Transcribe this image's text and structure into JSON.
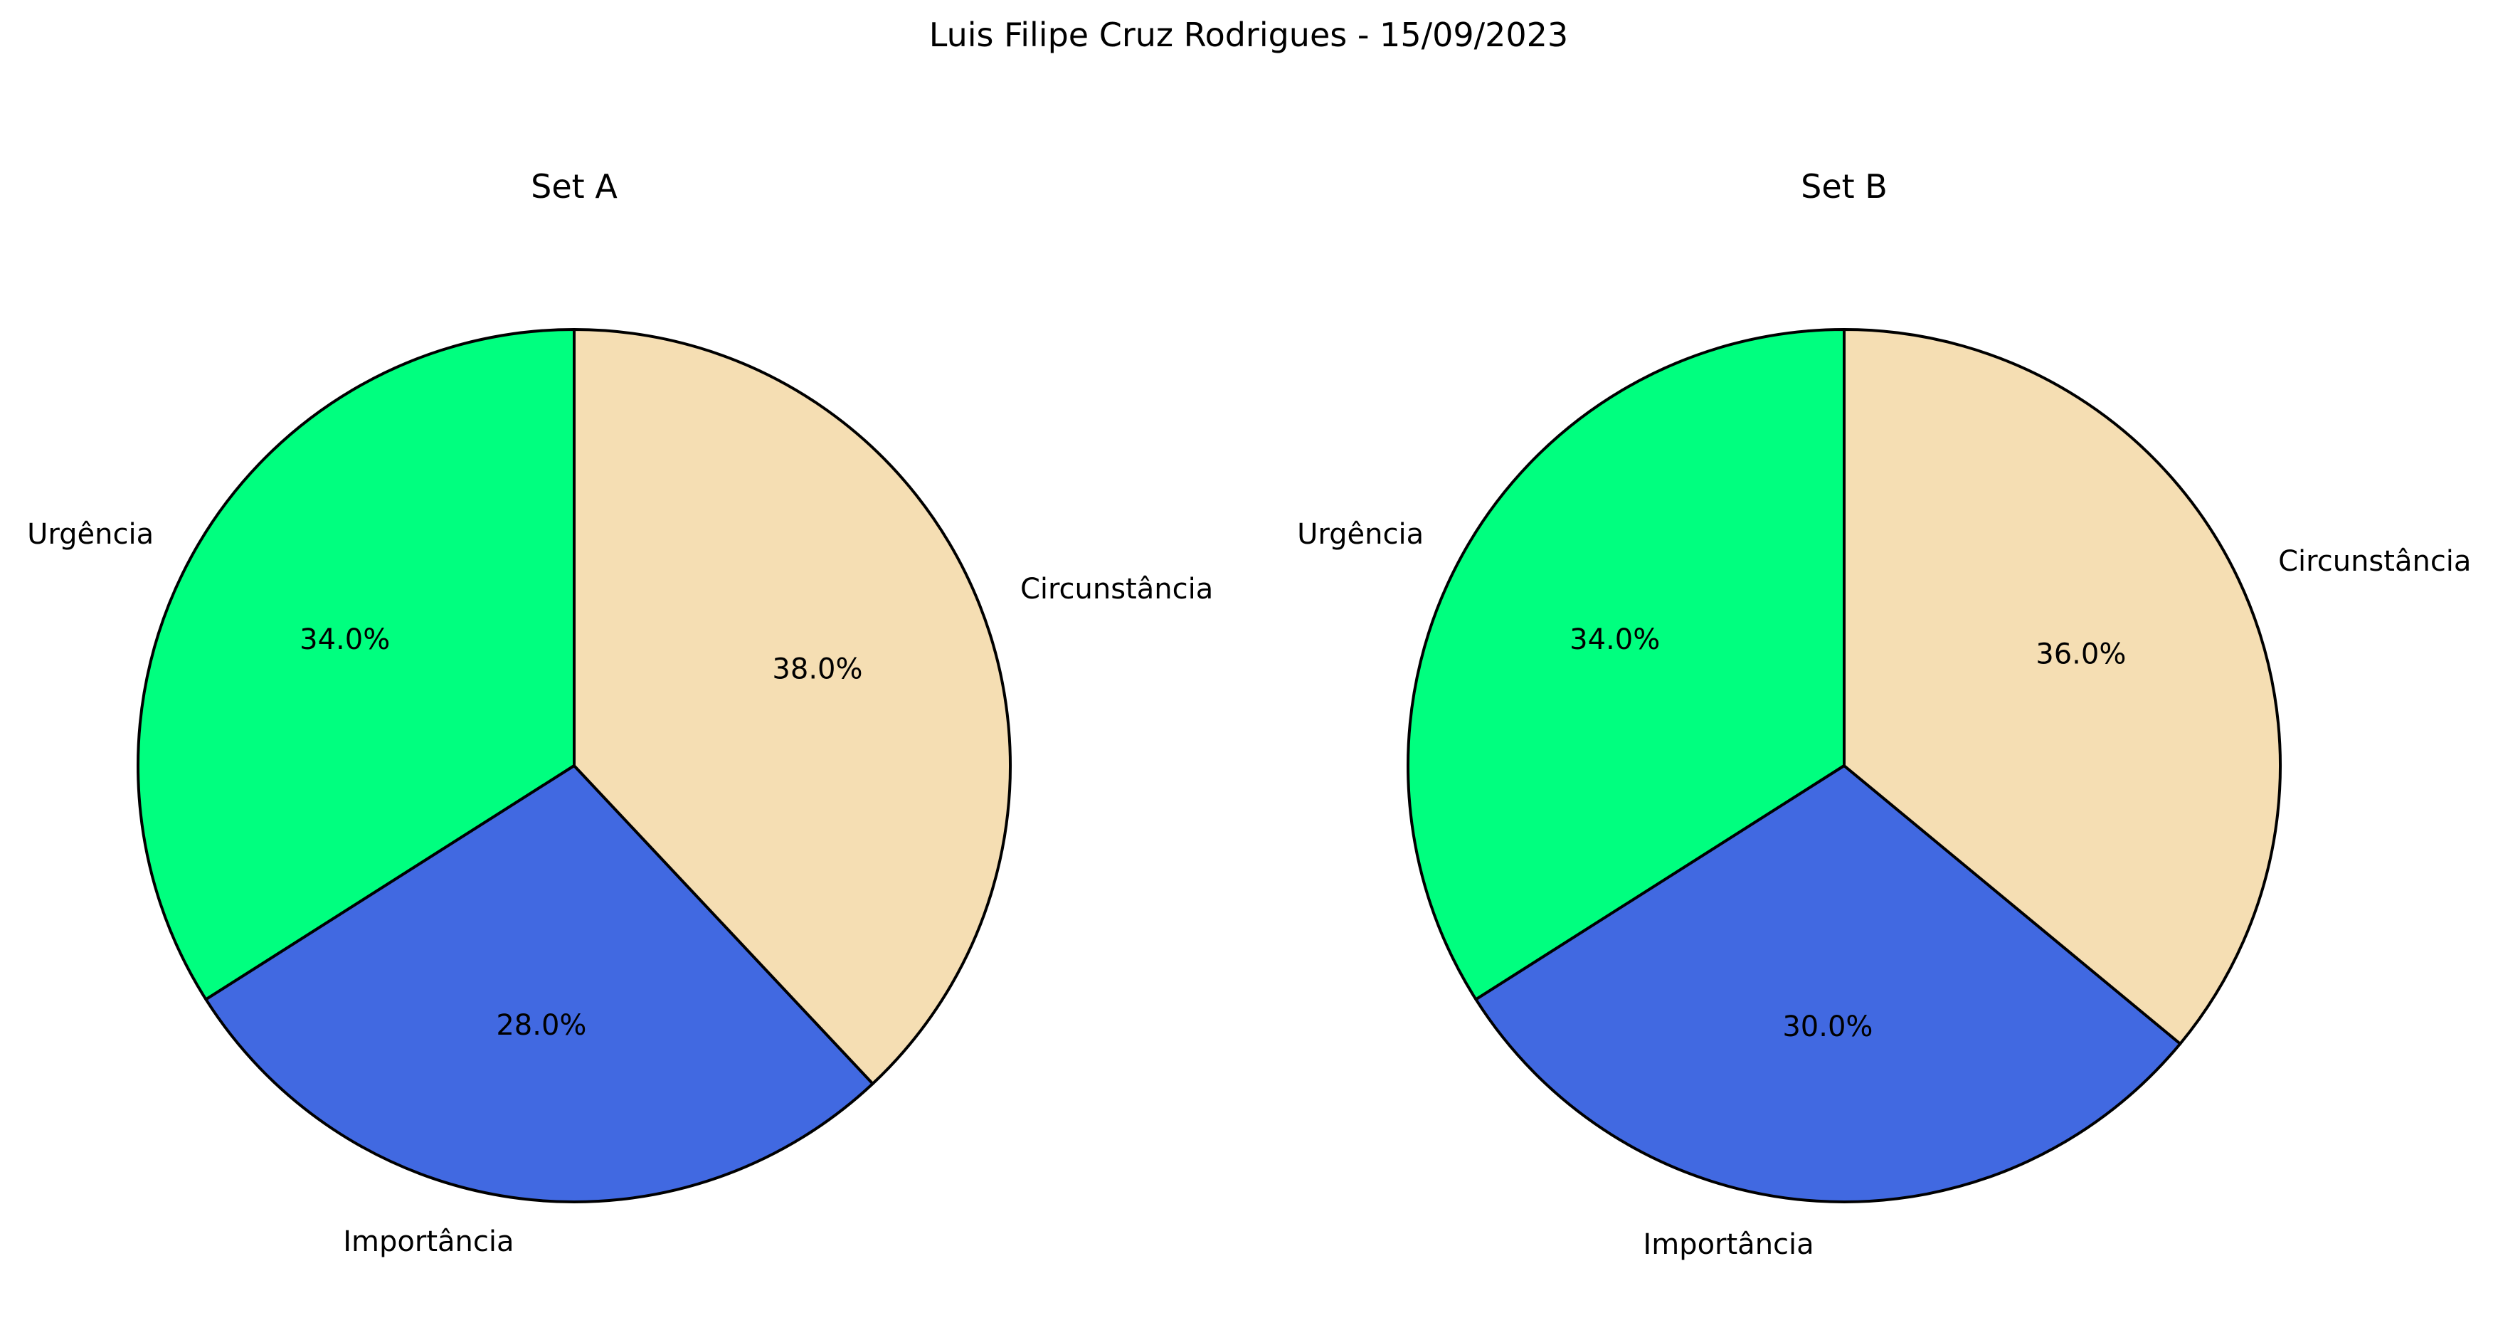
{
  "suptitle": "Luis Filipe Cruz Rodrigues - 15/09/2023",
  "chart_data": [
    {
      "type": "pie",
      "title": "Set A",
      "start_angle_deg": 90,
      "direction": "counterclockwise",
      "slices": [
        {
          "label": "Urgência",
          "value": 34.0,
          "pct_label": "34.0%",
          "color": "#00FF7F"
        },
        {
          "label": "Importância",
          "value": 28.0,
          "pct_label": "28.0%",
          "color": "#4169E1"
        },
        {
          "label": "Circunstância",
          "value": 38.0,
          "pct_label": "38.0%",
          "color": "#F5DEB3"
        }
      ]
    },
    {
      "type": "pie",
      "title": "Set B",
      "start_angle_deg": 90,
      "direction": "counterclockwise",
      "slices": [
        {
          "label": "Urgência",
          "value": 34.0,
          "pct_label": "34.0%",
          "color": "#00FF7F"
        },
        {
          "label": "Importância",
          "value": 30.0,
          "pct_label": "30.0%",
          "color": "#4169E1"
        },
        {
          "label": "Circunstância",
          "value": 36.0,
          "pct_label": "36.0%",
          "color": "#F5DEB3"
        }
      ]
    }
  ]
}
